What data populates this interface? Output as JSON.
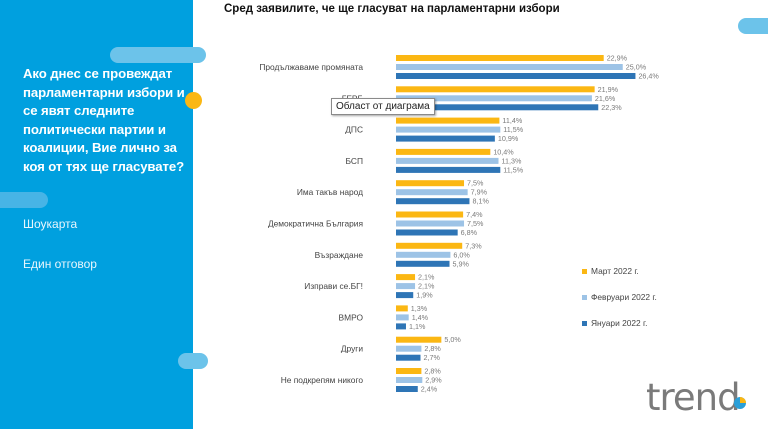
{
  "left_panel": {
    "question": "Ако днес се провеждат парламентарни избори и се явят следните политически партии и коалиции, Вие лично за коя от тях ще гласувате?",
    "method": "Шоукарта",
    "answer_type": "Един отговор"
  },
  "tooltip": "Област от диаграма",
  "logo_text": "trend",
  "colors": {
    "panel": "#00a0df",
    "march": "#fbb713",
    "february": "#9dc3e6",
    "january": "#2e75b6"
  },
  "chart_data": {
    "type": "bar",
    "orientation": "horizontal",
    "title": "Сред заявилите, че ще гласуват на парламентарни избори",
    "xlabel": "",
    "ylabel": "",
    "legend_position": "right",
    "value_format": "percent-comma",
    "categories": [
      "Продължаваме промяната",
      "ГЕРБ",
      "ДПС",
      "БСП",
      "Има такъв народ",
      "Демократична България",
      "Възраждане",
      "Изправи се.БГ!",
      "ВМРО",
      "Други",
      "Не подкрепям никого"
    ],
    "series": [
      {
        "name": "Март 2022 г.",
        "color": "#fbb713",
        "values": [
          22.9,
          21.9,
          11.4,
          10.4,
          7.5,
          7.4,
          7.3,
          2.1,
          1.3,
          5.0,
          2.8
        ],
        "labels": [
          "22,9%",
          "21,9%",
          "11,4%",
          "10,4%",
          "7,5%",
          "7,4%",
          "7,3%",
          "2,1%",
          "1,3%",
          "5,0%",
          "2,8%"
        ]
      },
      {
        "name": "Февруари 2022 г.",
        "color": "#9dc3e6",
        "values": [
          25.0,
          21.6,
          11.5,
          11.3,
          7.9,
          7.5,
          6.0,
          2.1,
          1.4,
          2.8,
          2.9
        ],
        "labels": [
          "25,0%",
          "21,6%",
          "11,5%",
          "11,3%",
          "7,9%",
          "7,5%",
          "6,0%",
          "2,1%",
          "1,4%",
          "2,8%",
          "2,9%"
        ]
      },
      {
        "name": "Януари 2022 г.",
        "color": "#2e75b6",
        "values": [
          26.4,
          22.3,
          10.9,
          11.5,
          8.1,
          6.8,
          5.9,
          1.9,
          1.1,
          2.7,
          2.4
        ],
        "labels": [
          "26,4%",
          "22,3%",
          "10,9%",
          "11,5%",
          "8,1%",
          "6,8%",
          "5,9%",
          "1,9%",
          "1,1%",
          "2,7%",
          "2,4%"
        ]
      }
    ]
  }
}
